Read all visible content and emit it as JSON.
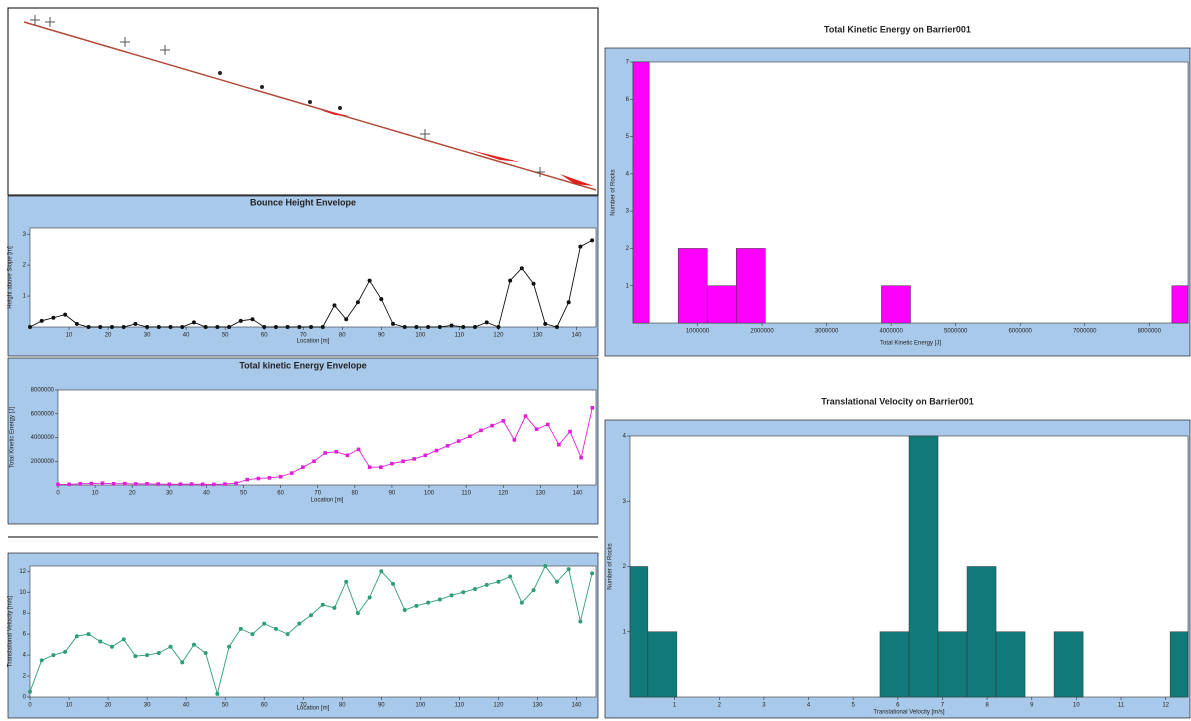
{
  "chart_data": [
    {
      "type": "line",
      "title": "Bounce Height Envelope",
      "x_label": "Location [m]",
      "y_label": "Height above Slope [m]",
      "marker": "circle",
      "x": [
        0,
        3,
        6,
        9,
        12,
        15,
        18,
        21,
        24,
        27,
        30,
        33,
        36,
        39,
        42,
        45,
        48,
        51,
        54,
        57,
        60,
        63,
        66,
        69,
        72,
        75,
        78,
        81,
        84,
        87,
        90,
        93,
        96,
        99,
        102,
        105,
        108,
        111,
        114,
        117,
        120,
        123,
        126,
        129,
        132,
        135,
        138,
        141,
        144
      ],
      "values": [
        0,
        0.2,
        0.3,
        0.4,
        0.1,
        0,
        0,
        0,
        0,
        0.1,
        0,
        0,
        0,
        0,
        0.15,
        0,
        0,
        0,
        0.2,
        0.25,
        0,
        0,
        0,
        0,
        0,
        0,
        0.7,
        0.25,
        0.8,
        1.5,
        0.9,
        0.1,
        0,
        0,
        0,
        0,
        0.05,
        0,
        0,
        0.15,
        0,
        1.5,
        1.9,
        1.4,
        0.1,
        0,
        0.8,
        2.6,
        2.8
      ],
      "color": "#111111",
      "xlim": [
        0,
        145
      ],
      "xticks": [
        10,
        20,
        30,
        40,
        50,
        60,
        70,
        80,
        90,
        100,
        110,
        120,
        130,
        140
      ],
      "ylim": [
        0,
        3.2
      ],
      "yticks": [
        1,
        2,
        3
      ]
    },
    {
      "type": "line",
      "title": "Total kinetic Energy Envelope",
      "x_label": "Location [m]",
      "y_label": "Total Kinetic Energy [J]",
      "marker": "square",
      "x": [
        0,
        3,
        6,
        9,
        12,
        15,
        18,
        21,
        24,
        27,
        30,
        33,
        36,
        39,
        42,
        45,
        48,
        51,
        54,
        57,
        60,
        63,
        66,
        69,
        72,
        75,
        78,
        81,
        84,
        87,
        90,
        93,
        96,
        99,
        102,
        105,
        108,
        111,
        114,
        117,
        120,
        123,
        126,
        129,
        132,
        135,
        138,
        141,
        144
      ],
      "values": [
        50000,
        60000,
        100000,
        120000,
        150000,
        100000,
        120000,
        90000,
        100000,
        80000,
        60000,
        70000,
        80000,
        60000,
        50000,
        80000,
        150000,
        450000,
        550000,
        600000,
        700000,
        1000000,
        1500000,
        2000000,
        2700000,
        2800000,
        2500000,
        3000000,
        1500000,
        1500000,
        1800000,
        2000000,
        2200000,
        2500000,
        2900000,
        3300000,
        3700000,
        4100000,
        4600000,
        5000000,
        5400000,
        3800000,
        5800000,
        4700000,
        5100000,
        3400000,
        4500000,
        2300000,
        6500000
      ],
      "color": "#e020d8",
      "xlim": [
        0,
        145
      ],
      "xticks": [
        0,
        10,
        20,
        30,
        40,
        50,
        60,
        70,
        80,
        90,
        100,
        110,
        120,
        130,
        140
      ],
      "ylim": [
        0,
        8000000
      ],
      "yticks": [
        2000000,
        4000000,
        6000000,
        8000000
      ]
    },
    {
      "type": "line",
      "x_label": "Location [m]",
      "y_label": "Translational Velocity [m/s]",
      "marker": "circle",
      "x": [
        0,
        3,
        6,
        9,
        12,
        15,
        18,
        21,
        24,
        27,
        30,
        33,
        36,
        39,
        42,
        45,
        48,
        51,
        54,
        57,
        60,
        63,
        66,
        69,
        72,
        75,
        78,
        81,
        84,
        87,
        90,
        93,
        96,
        99,
        102,
        105,
        108,
        111,
        114,
        117,
        120,
        123,
        126,
        129,
        132,
        135,
        138,
        141,
        144
      ],
      "values": [
        0.5,
        3.5,
        4,
        4.3,
        5.8,
        6,
        5.3,
        4.8,
        5.5,
        3.9,
        4,
        4.2,
        4.8,
        3.3,
        5,
        4.2,
        0.3,
        4.8,
        6.5,
        6,
        7,
        6.5,
        6,
        7,
        7.8,
        8.8,
        8.5,
        11,
        8,
        9.5,
        12,
        10.8,
        8.3,
        8.7,
        9,
        9.3,
        9.7,
        10,
        10.3,
        10.7,
        11,
        11.5,
        9,
        10.2,
        12.5,
        11,
        12.2,
        7.2,
        11.8
      ],
      "color": "#2e9e74",
      "xlim": [
        0,
        145
      ],
      "xticks": [
        0,
        10,
        20,
        30,
        40,
        50,
        60,
        70,
        80,
        90,
        100,
        110,
        120,
        130,
        140
      ],
      "ylim": [
        0,
        12.5
      ],
      "yticks": [
        0,
        2,
        4,
        6,
        8,
        10,
        12
      ]
    },
    {
      "type": "histogram",
      "title": "Total Kinetic Energy on Barrier001",
      "x_label": "Total Kinetic Energy [J]",
      "y_label": "Number of Rocks",
      "bins": [
        0,
        250000,
        700000,
        1150000,
        1600000,
        2050000,
        2500000,
        2950000,
        3400000,
        3850000,
        4300000,
        4750000,
        5200000,
        5650000,
        6100000,
        6550000,
        7000000,
        7450000,
        7900000,
        8350000,
        8600000
      ],
      "counts": [
        7,
        0,
        2,
        1,
        2,
        0,
        0,
        0,
        0,
        1,
        0,
        0,
        0,
        0,
        0,
        0,
        0,
        0,
        0,
        1
      ],
      "color": "#ff00ff",
      "xlim": [
        0,
        8600000
      ],
      "xticks": [
        1000000,
        2000000,
        3000000,
        4000000,
        5000000,
        6000000,
        7000000,
        8000000
      ],
      "ylim": [
        0,
        7
      ],
      "yticks": [
        1,
        2,
        3,
        4,
        5,
        6,
        7
      ]
    },
    {
      "type": "histogram",
      "title": "Translational Velocity on Barrier001",
      "x_label": "Translational Velocity [m/s]",
      "y_label": "Number of Rocks",
      "bins": [
        0,
        0.4,
        1.05,
        1.7,
        2.35,
        3,
        3.65,
        4.3,
        4.95,
        5.6,
        6.25,
        6.9,
        7.55,
        8.2,
        8.85,
        9.5,
        10.15,
        10.8,
        11.45,
        12.1,
        12.5
      ],
      "counts": [
        2,
        1,
        0,
        0,
        0,
        0,
        0,
        0,
        0,
        1,
        4,
        1,
        2,
        1,
        0,
        1,
        0,
        0,
        0,
        1
      ],
      "color": "#0f7a78",
      "xlim": [
        0,
        12.5
      ],
      "xticks": [
        1,
        2,
        3,
        4,
        5,
        6,
        7,
        8,
        9,
        10,
        11,
        12
      ],
      "ylim": [
        0,
        4
      ],
      "yticks": [
        1,
        2,
        3,
        4
      ]
    }
  ]
}
